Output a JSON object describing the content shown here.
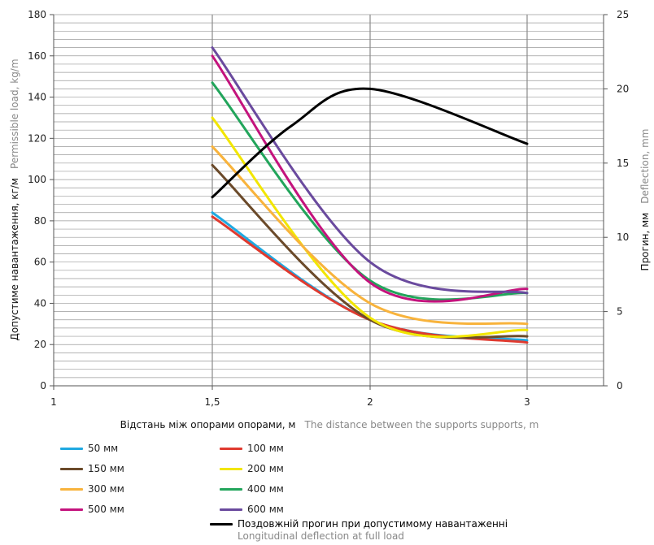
{
  "chart_data": {
    "type": "line",
    "x_categories": [
      "1",
      "1,5",
      "2",
      "3"
    ],
    "x_label_main": "Відстань між опорами опорами, м",
    "x_label_sub": "The distance between the supports supports, m",
    "y_left_label_main": "Допустиме навантаження, кг/м",
    "y_left_label_sub": "Permissible load, kg/m",
    "y_left_range": [
      0,
      180
    ],
    "y_left_ticks": [
      "0",
      "20",
      "40",
      "60",
      "80",
      "100",
      "120",
      "140",
      "160",
      "180"
    ],
    "y_right_label_main": "Прогин, мм",
    "y_right_label_sub": "Deflection, mm",
    "y_right_range": [
      0,
      25
    ],
    "y_right_ticks": [
      "0",
      "5",
      "10",
      "15",
      "20",
      "25"
    ],
    "grid": true,
    "series": [
      {
        "name": "50 мм",
        "color": "#1fa9e1",
        "points": [
          [
            1.5,
            84
          ],
          [
            2,
            32
          ],
          [
            3,
            22
          ]
        ]
      },
      {
        "name": "100 мм",
        "color": "#e03a2f",
        "points": [
          [
            1.5,
            82
          ],
          [
            2,
            32
          ],
          [
            3,
            21
          ]
        ]
      },
      {
        "name": "150 мм",
        "color": "#6b4a2a",
        "points": [
          [
            1.5,
            107
          ],
          [
            2,
            32
          ],
          [
            3,
            24
          ]
        ]
      },
      {
        "name": "200 мм",
        "color": "#f2e600",
        "points": [
          [
            1.5,
            130
          ],
          [
            2,
            33
          ],
          [
            3,
            27
          ]
        ]
      },
      {
        "name": "300 мм",
        "color": "#f8b33c",
        "points": [
          [
            1.5,
            116
          ],
          [
            2,
            40
          ],
          [
            3,
            30
          ]
        ]
      },
      {
        "name": "400 мм",
        "color": "#22a55b",
        "points": [
          [
            1.5,
            147
          ],
          [
            2,
            51
          ],
          [
            3,
            45
          ]
        ]
      },
      {
        "name": "500 мм",
        "color": "#c4137d",
        "points": [
          [
            1.5,
            160
          ],
          [
            2,
            50
          ],
          [
            3,
            47
          ]
        ]
      },
      {
        "name": "600 мм",
        "color": "#6a4a9e",
        "points": [
          [
            1.5,
            164
          ],
          [
            2,
            60
          ],
          [
            3,
            45
          ]
        ]
      }
    ],
    "deflection_series": {
      "name": "Поздовжній прогин при допустимому навантаженні",
      "name_sub": "Longitudinal deflection at full load",
      "color": "#000000",
      "axis": "right",
      "points": [
        [
          1.5,
          12.7
        ],
        [
          1.75,
          17.5
        ],
        [
          2,
          20
        ],
        [
          3,
          16.3
        ]
      ]
    }
  }
}
